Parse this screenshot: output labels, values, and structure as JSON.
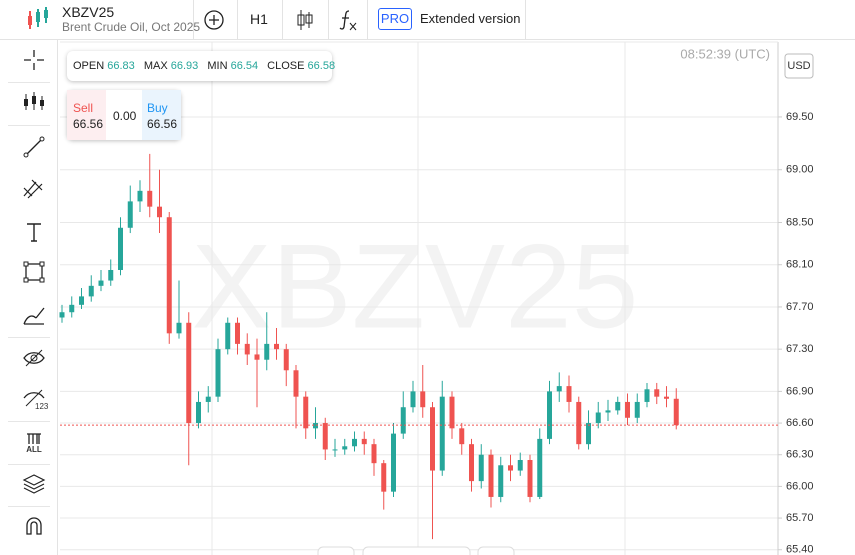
{
  "header": {
    "symbol": "XBZV25",
    "description": "Brent Crude Oil, Oct 2025",
    "timeframe": "H1",
    "pro": "PRO",
    "extended": "Extended version"
  },
  "time": "08:52:39 (UTC)",
  "currency": "USD",
  "ohlc": {
    "labels": [
      "OPEN",
      "MAX",
      "MIN",
      "CLOSE"
    ],
    "values": [
      66.83,
      66.93,
      66.54,
      66.58
    ]
  },
  "trade": {
    "sell_label": "Sell",
    "sell": 66.56,
    "spread": "0.00",
    "buy_label": "Buy",
    "buy": 66.56
  },
  "chart_data": {
    "type": "candlestick",
    "up_color": "#26a69a",
    "down_color": "#ef5350",
    "grid": true,
    "ylim": [
      65.35,
      70.21
    ],
    "yticks": [
      {
        "value": 69.5,
        "label": "69.50"
      },
      {
        "value": 69.0,
        "label": "69.00"
      },
      {
        "value": 68.5,
        "label": "68.50"
      },
      {
        "value": 68.1,
        "label": "68.10"
      },
      {
        "value": 67.7,
        "label": "67.70"
      },
      {
        "value": 67.3,
        "label": "67.30"
      },
      {
        "value": 66.9,
        "label": "66.90"
      },
      {
        "value": 66.6,
        "label": "66.60"
      },
      {
        "value": 66.3,
        "label": "66.30"
      },
      {
        "value": 66.0,
        "label": "66.00"
      },
      {
        "value": 65.7,
        "label": "65.70"
      },
      {
        "value": 65.4,
        "label": "65.40"
      }
    ],
    "open": [
      67.6,
      67.65,
      67.72,
      67.8,
      67.9,
      67.95,
      68.05,
      68.45,
      68.7,
      68.8,
      68.65,
      68.55,
      67.45,
      67.55,
      66.6,
      66.8,
      66.85,
      67.3,
      67.55,
      67.35,
      67.25,
      67.2,
      67.35,
      67.3,
      67.1,
      66.85,
      66.55,
      66.6,
      66.35,
      66.35,
      66.38,
      66.45,
      66.4,
      66.22,
      65.95,
      66.5,
      66.75,
      66.9,
      66.75,
      66.15,
      66.85,
      66.55,
      66.4,
      66.05,
      66.3,
      65.9,
      66.2,
      66.15,
      66.25,
      65.9,
      66.45,
      66.9,
      66.95,
      66.8,
      66.4,
      66.6,
      66.7,
      66.72,
      66.8,
      66.65,
      66.8,
      66.92,
      66.85,
      66.83
    ],
    "high": [
      67.72,
      67.8,
      67.88,
      68.0,
      68.05,
      68.15,
      68.55,
      68.85,
      68.9,
      69.15,
      69.0,
      68.6,
      67.95,
      67.65,
      66.9,
      66.95,
      67.4,
      67.6,
      67.6,
      67.45,
      67.4,
      67.65,
      67.5,
      67.35,
      67.15,
      66.9,
      66.75,
      66.65,
      66.45,
      66.45,
      66.52,
      66.52,
      66.45,
      66.25,
      66.6,
      66.9,
      67.0,
      67.15,
      66.8,
      67.0,
      66.9,
      66.6,
      66.45,
      66.4,
      66.35,
      66.28,
      66.3,
      66.32,
      66.3,
      66.55,
      67.0,
      67.08,
      67.05,
      66.85,
      66.72,
      66.8,
      66.82,
      66.85,
      66.88,
      66.88,
      66.98,
      66.98,
      66.95,
      66.93
    ],
    "low": [
      67.55,
      67.6,
      67.68,
      67.75,
      67.85,
      67.9,
      68.0,
      68.4,
      68.6,
      68.55,
      68.4,
      67.35,
      67.4,
      66.2,
      66.55,
      66.7,
      66.8,
      67.25,
      67.25,
      67.15,
      66.75,
      67.1,
      67.2,
      66.95,
      66.55,
      66.45,
      66.45,
      66.25,
      66.28,
      66.3,
      66.33,
      66.3,
      66.1,
      65.78,
      65.9,
      66.45,
      66.7,
      66.65,
      65.5,
      66.1,
      66.45,
      66.3,
      65.95,
      65.98,
      65.8,
      65.85,
      66.05,
      66.1,
      65.85,
      65.88,
      66.4,
      66.8,
      66.7,
      66.35,
      66.35,
      66.55,
      66.62,
      66.68,
      66.58,
      66.6,
      66.75,
      66.78,
      66.75,
      66.54
    ],
    "close": [
      67.65,
      67.72,
      67.8,
      67.9,
      67.95,
      68.05,
      68.45,
      68.7,
      68.8,
      68.65,
      68.55,
      67.45,
      67.55,
      66.6,
      66.8,
      66.85,
      67.3,
      67.55,
      67.35,
      67.25,
      67.2,
      67.35,
      67.3,
      67.1,
      66.85,
      66.55,
      66.6,
      66.35,
      66.35,
      66.38,
      66.45,
      66.4,
      66.22,
      65.95,
      66.5,
      66.75,
      66.9,
      66.75,
      66.15,
      66.85,
      66.55,
      66.4,
      66.05,
      66.3,
      65.9,
      66.2,
      66.15,
      66.25,
      65.9,
      66.45,
      66.9,
      66.95,
      66.8,
      66.4,
      66.6,
      66.7,
      66.72,
      66.8,
      66.65,
      66.8,
      66.92,
      66.85,
      66.83,
      66.58
    ]
  }
}
